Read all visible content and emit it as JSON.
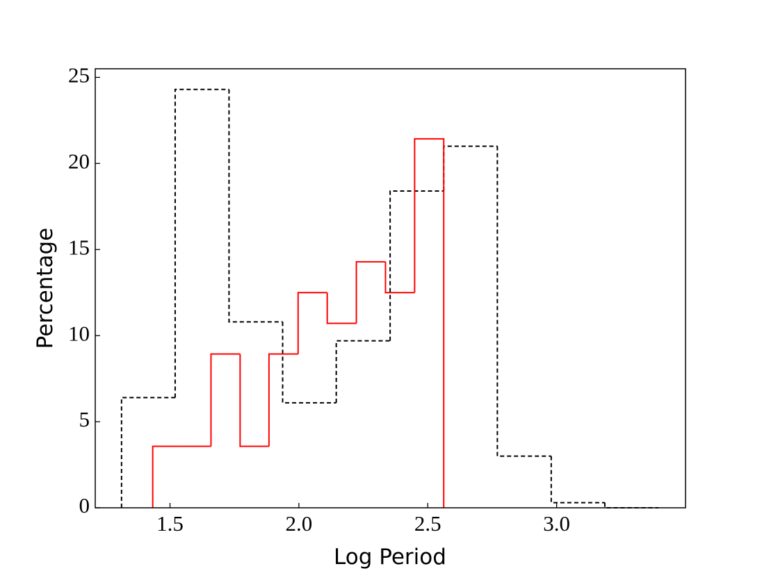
{
  "chart_data": {
    "type": "histogram",
    "xlabel": "Log Period",
    "ylabel": "Percentage",
    "xlim": [
      1.21,
      3.5
    ],
    "ylim": [
      0,
      25.5
    ],
    "xticks": [
      1.5,
      {
        "value": 2,
        "label": "2.0"
      },
      2.5,
      {
        "value": 3,
        "label": "3.0"
      }
    ],
    "yticks": [
      0,
      5,
      10,
      15,
      20,
      25
    ],
    "grid": false,
    "series": [
      {
        "color": "#000000",
        "linestyle": "dashed",
        "bins": [
          1.312,
          1.52,
          1.729,
          1.937,
          2.145,
          2.354,
          2.562,
          2.77,
          2.979,
          3.187,
          3.395
        ],
        "values": [
          6.4,
          24.3,
          10.8,
          6.1,
          9.7,
          18.4,
          21.0,
          3.0,
          0.3,
          0.0
        ]
      },
      {
        "color": "#ff0000",
        "linestyle": "solid",
        "bins": [
          1.433,
          1.546,
          1.659,
          1.772,
          1.884,
          1.997,
          2.11,
          2.223,
          2.336,
          2.449,
          2.562
        ],
        "values": [
          3.57,
          3.57,
          8.93,
          3.57,
          8.93,
          12.5,
          10.71,
          14.29,
          12.5,
          21.43
        ]
      }
    ]
  }
}
